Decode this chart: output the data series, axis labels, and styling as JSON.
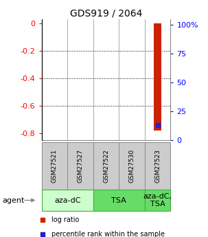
{
  "title": "GDS919 / 2064",
  "samples": [
    "GSM27521",
    "GSM27527",
    "GSM27522",
    "GSM27530",
    "GSM27523"
  ],
  "ylim_left": [
    -0.85,
    0.03
  ],
  "yticks_left": [
    0,
    -0.2,
    -0.4,
    -0.6,
    -0.8
  ],
  "yticklabels_left": [
    "0",
    "-0.2",
    "-0.4",
    "-0.6",
    "-0.8"
  ],
  "ylim_right": [
    0.0,
    1.05
  ],
  "yticks_right": [
    0,
    0.25,
    0.5,
    0.75,
    1.0
  ],
  "yticklabels_right": [
    "0",
    "25",
    "50",
    "75",
    "100%"
  ],
  "log_ratio_sample": 4,
  "log_ratio_value": -0.78,
  "log_ratio_bar_width": 0.3,
  "percentile_rank_sample": 4,
  "percentile_rank_value": 0.13,
  "bar_color": "#cc2200",
  "dot_color": "#2222cc",
  "sample_box_color": "#cccccc",
  "sample_box_edge": "#888888",
  "group_defs": [
    {
      "label": "aza-dC",
      "start": 0,
      "end": 1,
      "color": "#ccffcc"
    },
    {
      "label": "TSA",
      "start": 2,
      "end": 3,
      "color": "#66dd66"
    },
    {
      "label": "aza-dC,\nTSA",
      "start": 4,
      "end": 4,
      "color": "#66dd66"
    }
  ],
  "group_edge": "#44aa44",
  "agent_label": "agent",
  "legend_logratio": "log ratio",
  "legend_percentile": "percentile rank within the sample",
  "title_fontsize": 10,
  "axis_fontsize": 8,
  "sample_fontsize": 6.5,
  "group_fontsize": 8
}
